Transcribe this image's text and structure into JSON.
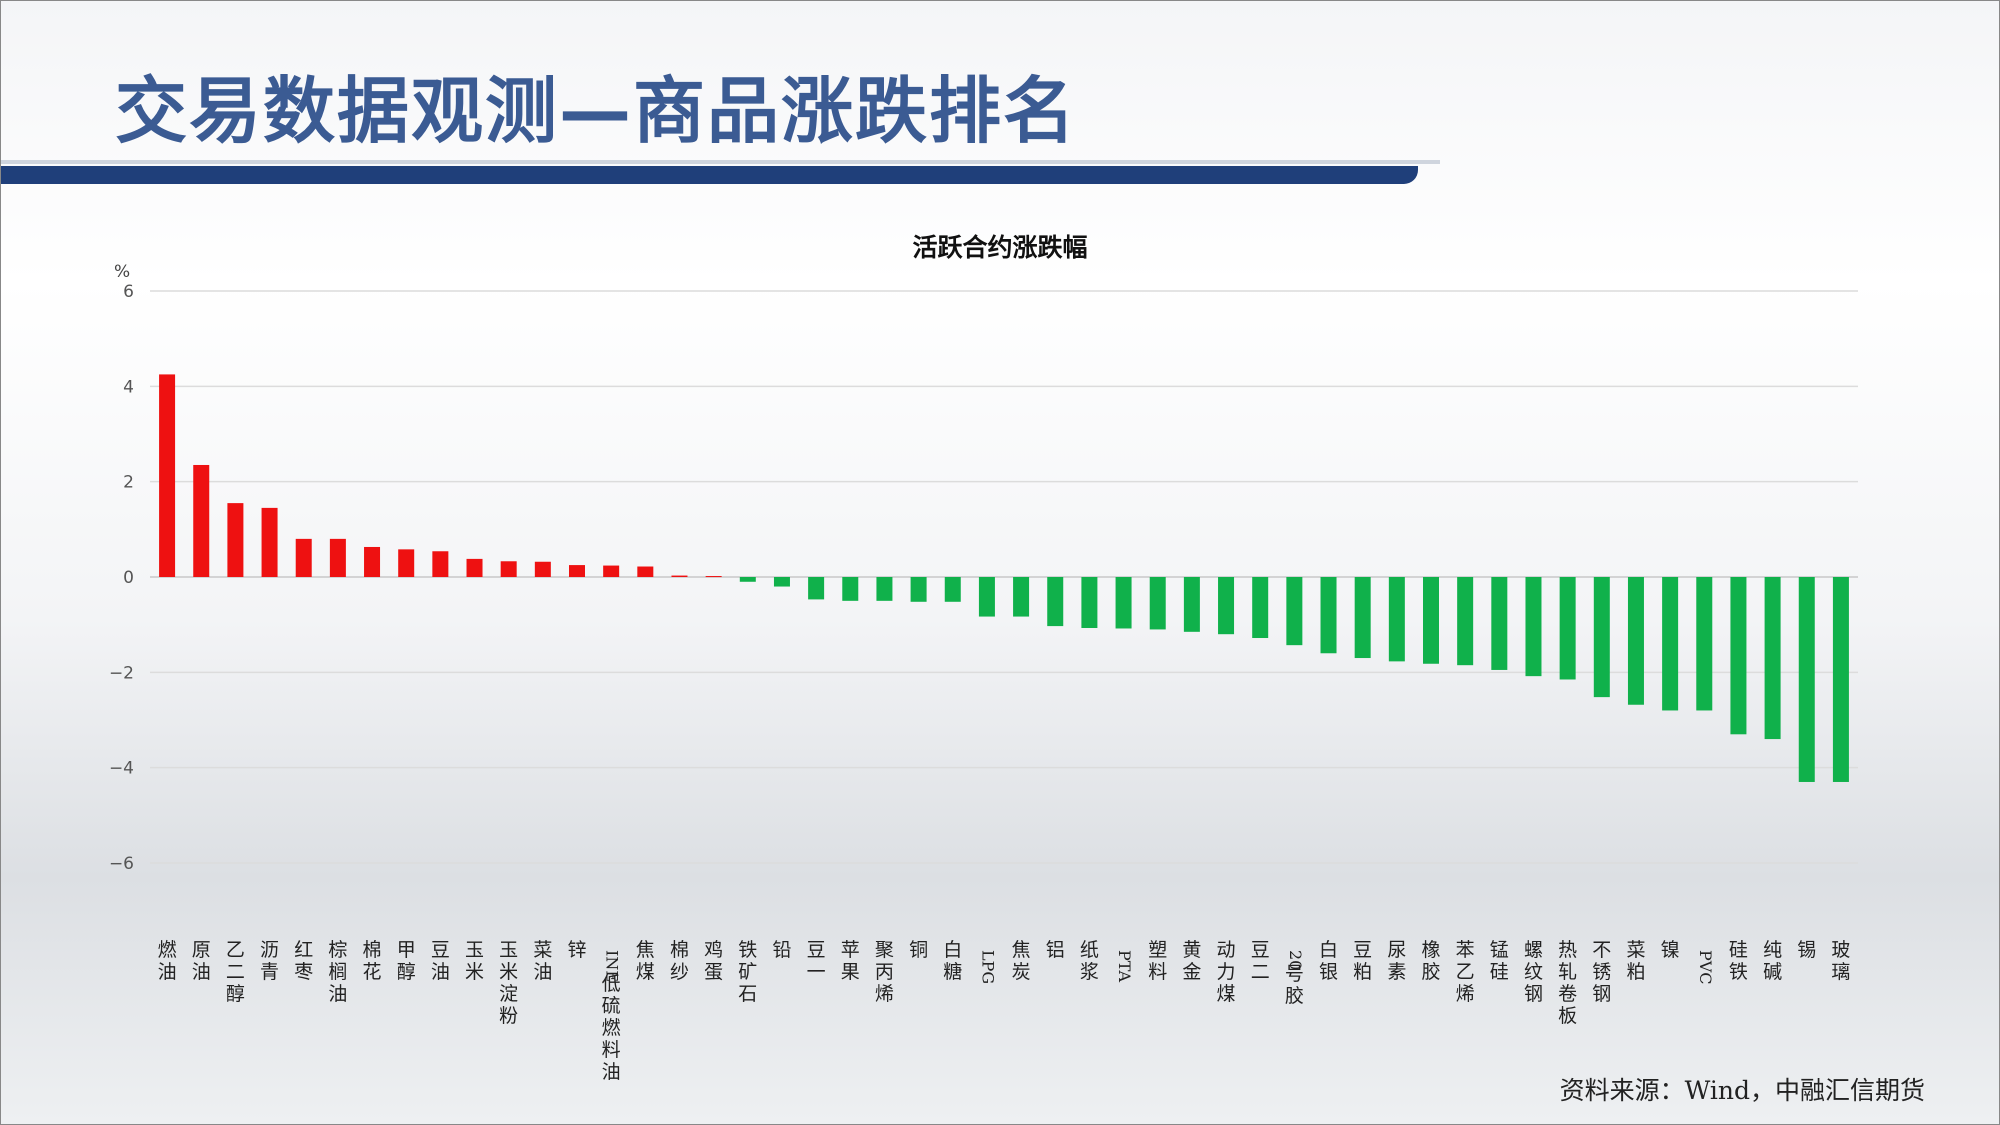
{
  "slide_title": "交易数据观测—商品涨跌排名",
  "source": "资料来源：Wind，中融汇信期货",
  "colors": {
    "up": "#ee1111",
    "down": "#10b14b",
    "title": "#3b5b93",
    "bar": "#1f3f7a"
  },
  "chart_data": {
    "type": "bar",
    "title": "活跃合约涨跌幅",
    "ylabel": "%",
    "ylim": [
      -6,
      6
    ],
    "yticks": [
      6,
      4,
      2,
      0,
      -2,
      -4,
      -6
    ],
    "grid": true,
    "categories": [
      "燃油",
      "原油",
      "乙二醇",
      "沥青",
      "红枣",
      "棕榈油",
      "棉花",
      "甲醇",
      "豆油",
      "玉米",
      "玉米淀粉",
      "菜油",
      "锌",
      "INE低硫燃料油",
      "焦煤",
      "棉纱",
      "鸡蛋",
      "铁矿石",
      "铅",
      "豆一",
      "苹果",
      "聚丙烯",
      "铜",
      "白糖",
      "LPG",
      "焦炭",
      "铝",
      "纸浆",
      "PTA",
      "塑料",
      "黄金",
      "动力煤",
      "豆二",
      "20号胶",
      "白银",
      "豆粕",
      "尿素",
      "橡胶",
      "苯乙烯",
      "锰硅",
      "螺纹钢",
      "热轧卷板",
      "不锈钢",
      "菜粕",
      "镍",
      "PVC",
      "硅铁",
      "纯碱",
      "锡",
      "玻璃"
    ],
    "values": [
      4.25,
      2.35,
      1.55,
      1.45,
      0.8,
      0.8,
      0.63,
      0.58,
      0.54,
      0.38,
      0.33,
      0.32,
      0.25,
      0.24,
      0.22,
      0.03,
      0.02,
      -0.1,
      -0.2,
      -0.47,
      -0.5,
      -0.5,
      -0.52,
      -0.52,
      -0.83,
      -0.83,
      -1.03,
      -1.07,
      -1.08,
      -1.1,
      -1.15,
      -1.2,
      -1.28,
      -1.43,
      -1.6,
      -1.7,
      -1.77,
      -1.82,
      -1.85,
      -1.95,
      -2.08,
      -2.15,
      -2.52,
      -2.68,
      -2.8,
      -2.8,
      -3.3,
      -3.4,
      -4.3,
      -4.3
    ]
  }
}
